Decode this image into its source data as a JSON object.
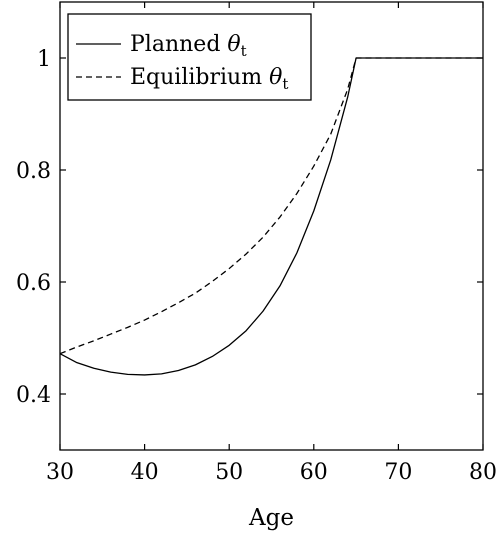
{
  "chart_data": {
    "type": "line",
    "xlabel": "Age",
    "ylabel": "",
    "xlim": [
      30,
      80
    ],
    "ylim": [
      0.3,
      1.1
    ],
    "xticks": [
      30,
      40,
      50,
      60,
      70,
      80
    ],
    "yticks": [
      0.4,
      0.6,
      0.8,
      1
    ],
    "xtick_labels": [
      "30",
      "40",
      "50",
      "60",
      "70",
      "80"
    ],
    "ytick_labels": [
      "0.4",
      "0.6",
      "0.8",
      "1"
    ],
    "grid": false,
    "legend_position": "top-left",
    "series": [
      {
        "name": "Planned θt",
        "name_main": "Planned ",
        "name_symbol": "θ",
        "name_subscript": "t",
        "style": "solid",
        "color": "#000000",
        "x": [
          30,
          32,
          34,
          36,
          38,
          40,
          42,
          44,
          46,
          48,
          50,
          52,
          54,
          56,
          58,
          60,
          62,
          64,
          65,
          66,
          70,
          75,
          80
        ],
        "y": [
          0.472,
          0.456,
          0.446,
          0.439,
          0.435,
          0.434,
          0.436,
          0.442,
          0.452,
          0.467,
          0.487,
          0.513,
          0.548,
          0.593,
          0.652,
          0.727,
          0.818,
          0.93,
          1.0,
          1.0,
          1.0,
          1.0,
          1.0
        ]
      },
      {
        "name": "Equilibrium θt",
        "name_main": "Equilibrium ",
        "name_symbol": "θ",
        "name_subscript": "t",
        "style": "dashed",
        "color": "#000000",
        "x": [
          30,
          32,
          34,
          36,
          38,
          40,
          42,
          44,
          46,
          48,
          50,
          52,
          54,
          56,
          58,
          60,
          62,
          64,
          65,
          66,
          70,
          75,
          80
        ],
        "y": [
          0.472,
          0.484,
          0.495,
          0.507,
          0.519,
          0.532,
          0.547,
          0.563,
          0.58,
          0.601,
          0.624,
          0.65,
          0.68,
          0.716,
          0.758,
          0.807,
          0.864,
          0.944,
          1.0,
          1.0,
          1.0,
          1.0,
          1.0
        ]
      }
    ]
  }
}
